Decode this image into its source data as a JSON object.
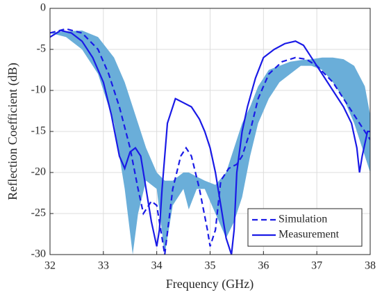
{
  "chart_data": {
    "type": "line",
    "xlabel": "Frequency (GHz)",
    "ylabel": "Reflection Coefficient (dB)",
    "xlim": [
      32,
      38
    ],
    "xticks": [
      32,
      33,
      34,
      35,
      36,
      37,
      38
    ],
    "ylim": [
      -30,
      0
    ],
    "yticks": [
      -30,
      -25,
      -20,
      -15,
      -10,
      -5,
      0
    ],
    "grid": true,
    "legend": "lower right",
    "band": {
      "color": "#6aaed9",
      "x": [
        32,
        32.3,
        32.6,
        32.9,
        33.2,
        33.4,
        33.55,
        33.65,
        33.8,
        34.0,
        34.15,
        34.3,
        34.5,
        34.6,
        34.75,
        34.9,
        35.1,
        35.3,
        35.45,
        35.6,
        35.75,
        35.9,
        36.1,
        36.3,
        36.5,
        36.7,
        36.9,
        37.1,
        37.3,
        37.5,
        37.7,
        37.9,
        38
      ],
      "upper": [
        -3,
        -2.8,
        -2.7,
        -3.5,
        -6,
        -9,
        -12,
        -14,
        -17,
        -20,
        -21,
        -21,
        -20,
        -20,
        -20.5,
        -21,
        -21.5,
        -20,
        -17,
        -14,
        -12,
        -9.5,
        -7.5,
        -7,
        -6.5,
        -6.3,
        -6.2,
        -6,
        -6,
        -6.2,
        -7,
        -9.5,
        -13
      ],
      "lower": [
        -3,
        -3.5,
        -5,
        -8,
        -14,
        -22,
        -30,
        -25,
        -21,
        -22,
        -30,
        -24,
        -22,
        -24.5,
        -22,
        -22,
        -25,
        -28,
        -26,
        -23,
        -18,
        -14,
        -11,
        -9,
        -8,
        -7,
        -7,
        -7.5,
        -9,
        -11,
        -14,
        -18,
        -20
      ]
    },
    "series": [
      {
        "name": "Simulation",
        "color": "#1a1ae6",
        "style": "dashed",
        "x": [
          32,
          32.3,
          32.6,
          32.9,
          33.1,
          33.3,
          33.5,
          33.65,
          33.75,
          33.9,
          34.0,
          34.1,
          34.15,
          34.3,
          34.45,
          34.55,
          34.65,
          34.8,
          34.95,
          35.0,
          35.1,
          35.2,
          35.35,
          35.5,
          35.6,
          35.75,
          35.9,
          36.1,
          36.35,
          36.6,
          36.8,
          37.0,
          37.3,
          37.5,
          37.7,
          37.9,
          38
        ],
        "values": [
          -3,
          -2.5,
          -3,
          -5,
          -8,
          -12,
          -17,
          -22,
          -25,
          -23.5,
          -24,
          -28,
          -30,
          -22,
          -18,
          -17,
          -18,
          -22,
          -27,
          -29,
          -27,
          -21,
          -19.5,
          -19,
          -18,
          -15,
          -11,
          -8,
          -6.5,
          -6,
          -6.2,
          -7,
          -9,
          -11,
          -13,
          -15,
          -16
        ]
      },
      {
        "name": "Measurement",
        "color": "#1a1ae6",
        "style": "solid",
        "x": [
          32,
          32.2,
          32.4,
          32.6,
          32.8,
          33.0,
          33.15,
          33.3,
          33.4,
          33.5,
          33.6,
          33.7,
          33.8,
          33.9,
          34.0,
          34.05,
          34.1,
          34.2,
          34.35,
          34.5,
          34.65,
          34.8,
          34.9,
          35.0,
          35.1,
          35.2,
          35.3,
          35.4,
          35.45,
          35.5,
          35.6,
          35.7,
          35.85,
          36.0,
          36.2,
          36.4,
          36.6,
          36.75,
          36.9,
          37.1,
          37.3,
          37.5,
          37.65,
          37.75,
          37.8,
          37.85,
          37.95,
          38.0
        ],
        "values": [
          -3.5,
          -2.7,
          -3,
          -4,
          -6,
          -9,
          -13,
          -18,
          -19.5,
          -17.5,
          -17,
          -18,
          -22,
          -26,
          -29,
          -27,
          -22,
          -14,
          -11,
          -11.5,
          -12,
          -13.5,
          -15,
          -17,
          -20,
          -24,
          -28,
          -30,
          -27,
          -20,
          -15,
          -12,
          -8.5,
          -6,
          -5,
          -4.3,
          -4,
          -4.5,
          -6,
          -8,
          -10,
          -12,
          -14,
          -17,
          -20,
          -18,
          -15,
          -15
        ]
      }
    ]
  }
}
